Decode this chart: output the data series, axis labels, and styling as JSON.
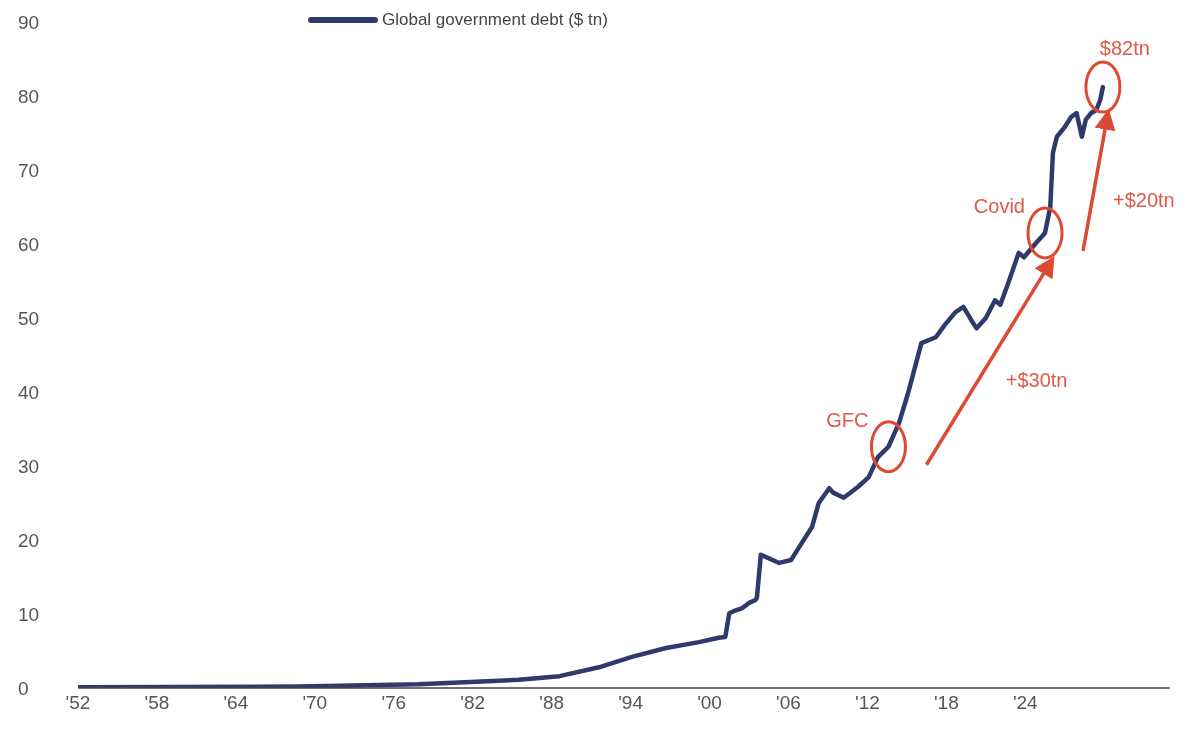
{
  "chart_data": {
    "type": "line",
    "xlim": [
      1952,
      2035
    ],
    "xticks": [
      {
        "value": 1952,
        "label": "'52"
      },
      {
        "value": 1958,
        "label": "'58"
      },
      {
        "value": 1964,
        "label": "'64"
      },
      {
        "value": 1970,
        "label": "'70"
      },
      {
        "value": 1976,
        "label": "'76"
      },
      {
        "value": 1982,
        "label": "'82"
      },
      {
        "value": 1988,
        "label": "'88"
      },
      {
        "value": 1994,
        "label": "'94"
      },
      {
        "value": 2000,
        "label": "'00"
      },
      {
        "value": 2006,
        "label": "'06"
      },
      {
        "value": 2012,
        "label": "'12"
      },
      {
        "value": 2018,
        "label": "'18"
      },
      {
        "value": 2024,
        "label": "'24"
      }
    ],
    "ylim": [
      0,
      90
    ],
    "yticks": [
      0,
      10,
      20,
      30,
      40,
      50,
      60,
      70,
      80,
      90
    ],
    "grid": false,
    "legend": "top",
    "marker": "none",
    "line_style": "solid",
    "series": [
      {
        "name": "Global government debt ($ tn)",
        "color": "#2e3a6b",
        "x": [
          1952,
          1968.8,
          1977.9,
          1985.5,
          1988.6,
          1991.6,
          1994.1,
          1996.7,
          1999.2,
          2000.7,
          2001.2,
          2001.5,
          2002.0,
          2002.5,
          2003.0,
          2003.5,
          2003.6,
          2003.9,
          2005.3,
          2006.2,
          2006.8,
          2007.8,
          2008.3,
          2009.1,
          2009.4,
          2010.2,
          2011.3,
          2012.1,
          2012.8,
          2013.6,
          2014.4,
          2015.1,
          2015.7,
          2016.1,
          2017.2,
          2017.9,
          2018.7,
          2019.3,
          2019.9,
          2020.3,
          2021.0,
          2021.7,
          2022.1,
          2022.7,
          2023.5,
          2023.9,
          2024.8,
          2025.5,
          2025.9,
          2026.1,
          2026.4,
          2027.0,
          2027.5,
          2027.9,
          2028.3,
          2028.6,
          2029.0,
          2029.4,
          2029.7,
          2029.9
        ],
        "values": [
          0.1,
          0.2,
          0.5,
          1.1,
          1.6,
          2.8,
          4.2,
          5.4,
          6.2,
          6.8,
          6.9,
          10.1,
          10.5,
          10.8,
          11.5,
          11.9,
          12.2,
          18,
          16.9,
          17.3,
          19,
          21.8,
          25,
          27,
          26.4,
          25.7,
          27.2,
          28.5,
          31.2,
          32.6,
          35.8,
          39.9,
          43.9,
          46.6,
          47.4,
          49.1,
          50.8,
          51.5,
          49.7,
          48.6,
          50,
          52.4,
          51.8,
          54.7,
          58.8,
          58.2,
          60.1,
          61.5,
          65,
          72.3,
          74.5,
          75.8,
          77.2,
          77.7,
          74.5,
          76.8,
          77.7,
          78.1,
          79.5,
          81.2
        ]
      }
    ],
    "annotations": [
      {
        "text": "GFC",
        "x": 2013.6,
        "y": 32.6
      },
      {
        "text": "Covid",
        "x": 2025.5,
        "y": 61.5
      },
      {
        "text": "$82tn",
        "x": 2029.9,
        "y": 81.2
      },
      "+$30tn",
      "+$20tn"
    ]
  }
}
